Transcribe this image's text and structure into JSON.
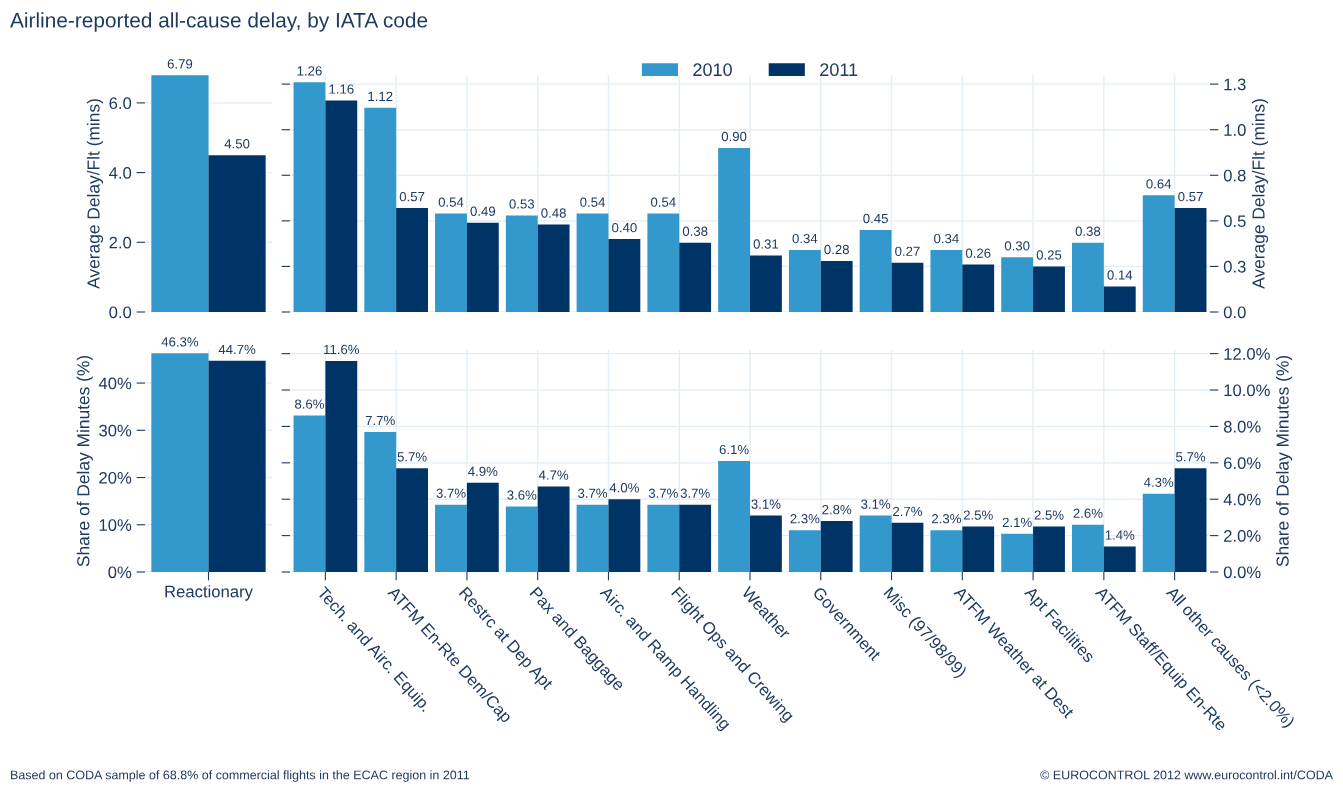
{
  "chart_data": [
    {
      "type": "bar",
      "title": "Airline-reported all-cause delay, by IATA code",
      "ylabel": "Average Delay/Flt (mins)",
      "categories": [
        null
      ],
      "series": [
        {
          "color": "#3399cc",
          "values": [
            6.79
          ],
          "value_labels": [
            "6.79"
          ]
        },
        {
          "color": "#003366",
          "values": [
            4.5
          ],
          "value_labels": [
            "4.50"
          ]
        }
      ],
      "ylim": [
        0,
        6.8
      ],
      "yticks": [
        {
          "value": 0,
          "label": "0.0"
        },
        {
          "value": 2,
          "label": "2.0"
        },
        {
          "value": 4,
          "label": "4.0"
        },
        {
          "value": 6,
          "label": "6.0"
        }
      ],
      "tick_labels": "y",
      "grid": true,
      "legend": false,
      "annotations": [
        "Based on CODA sample of 68.8% of commercial flights in the ECAC region in 2011",
        "© EUROCONTROL 2012 www.eurocontrol.int/CODA"
      ]
    },
    {
      "type": "bar",
      "ylabel": "Average Delay/Flt (mins)",
      "categories": [
        null,
        null,
        null,
        null,
        null,
        null,
        null,
        null,
        null,
        null,
        null,
        null,
        null
      ],
      "series": [
        {
          "name": "2010",
          "color": "#3399cc",
          "values": [
            1.26,
            1.12,
            0.54,
            0.53,
            0.54,
            0.54,
            0.9,
            0.34,
            0.45,
            0.34,
            0.3,
            0.38,
            0.64
          ],
          "value_labels": [
            "1.26",
            "1.12",
            "0.54",
            "0.53",
            "0.54",
            "0.54",
            "0.90",
            "0.34",
            "0.45",
            "0.34",
            "0.30",
            "0.38",
            "0.64"
          ]
        },
        {
          "name": "2011",
          "color": "#003366",
          "values": [
            1.16,
            0.57,
            0.49,
            0.48,
            0.4,
            0.38,
            0.31,
            0.28,
            0.27,
            0.26,
            0.25,
            0.14,
            0.57
          ],
          "value_labels": [
            "1.16",
            "0.57",
            "0.49",
            "0.48",
            "0.40",
            "0.38",
            "0.31",
            "0.28",
            "0.27",
            "0.26",
            "0.25",
            "0.14",
            "0.57"
          ]
        }
      ],
      "ylim": [
        0,
        1.3
      ],
      "yticks": [
        {
          "value": 0,
          "label": "0.0"
        },
        {
          "value": 0.25,
          "label": "0.3"
        },
        {
          "value": 0.5,
          "label": "0.5"
        },
        {
          "value": 0.75,
          "label": "0.8"
        },
        {
          "value": 1.0,
          "label": "1.0"
        },
        {
          "value": 1.25,
          "label": "1.3"
        }
      ],
      "tick_labels": "y",
      "grid": true,
      "legend": "top"
    },
    {
      "type": "bar",
      "ylabel": "Share of Delay Minutes (%)",
      "categories": [
        "Reactionary"
      ],
      "series": [
        {
          "color": "#3399cc",
          "values": [
            46.3
          ],
          "value_labels": [
            "46.3%"
          ]
        },
        {
          "color": "#003366",
          "values": [
            44.7
          ],
          "value_labels": [
            "44.7%"
          ]
        }
      ],
      "ylim": [
        0,
        47
      ],
      "yticks": [
        {
          "value": 0,
          "label": "0%"
        },
        {
          "value": 10,
          "label": "10%"
        },
        {
          "value": 20,
          "label": "20%"
        },
        {
          "value": 30,
          "label": "30%"
        },
        {
          "value": 40,
          "label": "40%"
        }
      ],
      "grid": true,
      "legend": false
    },
    {
      "type": "bar",
      "ylabel": "Share of Delay Minutes (%)",
      "categories": [
        "Tech. and Airc. Equip.",
        "ATFM En-Rte Dem/Cap",
        "Restrc at Dep Apt",
        "Pax and Baggage",
        "Airc. and Ramp Handling",
        "Flight Ops and Crewing",
        "Weather",
        "Government",
        "Misc (97/98/99)",
        "ATFM Weather at Dest",
        "Apt Facilities",
        "ATFM Staff/Equip En-Rte",
        "All other causes (<2.0%)"
      ],
      "series": [
        {
          "color": "#3399cc",
          "values": [
            8.6,
            7.7,
            3.7,
            3.6,
            3.7,
            3.7,
            6.1,
            2.3,
            3.1,
            2.3,
            2.1,
            2.6,
            4.3
          ],
          "value_labels": [
            "8.6%",
            "7.7%",
            "3.7%",
            "3.6%",
            "3.7%",
            "3.7%",
            "6.1%",
            "2.3%",
            "3.1%",
            "2.3%",
            "2.1%",
            "2.6%",
            "4.3%"
          ]
        },
        {
          "color": "#003366",
          "values": [
            11.6,
            5.7,
            4.9,
            4.7,
            4.0,
            3.7,
            3.1,
            2.8,
            2.7,
            2.5,
            2.5,
            1.4,
            5.7
          ],
          "value_labels": [
            "11.6%",
            "5.7%",
            "4.9%",
            "4.7%",
            "4.0%",
            "3.7%",
            "3.1%",
            "2.8%",
            "2.7%",
            "2.5%",
            "2.5%",
            "1.4%",
            "5.7%"
          ]
        }
      ],
      "ylim": [
        0,
        12.2
      ],
      "yticks": [
        {
          "value": 0,
          "label": "0.0%"
        },
        {
          "value": 2,
          "label": "2.0%"
        },
        {
          "value": 4,
          "label": "4.0%"
        },
        {
          "value": 6,
          "label": "6.0%"
        },
        {
          "value": 8,
          "label": "8.0%"
        },
        {
          "value": 10,
          "label": "10.0%"
        },
        {
          "value": 12,
          "label": "12.0%"
        }
      ],
      "grid": true,
      "legend": false
    }
  ]
}
